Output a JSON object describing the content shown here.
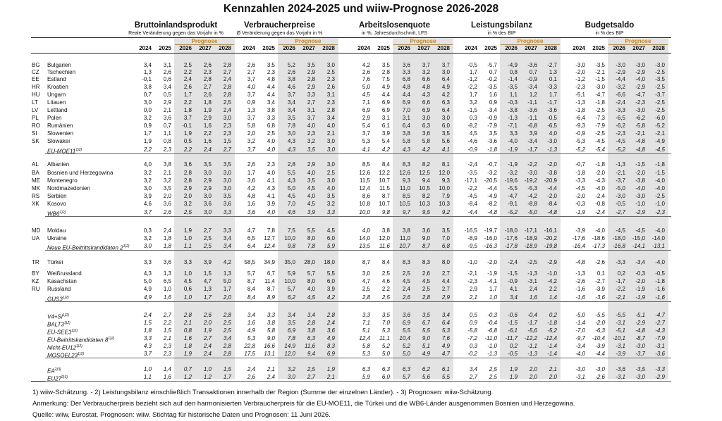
{
  "title": "Kennzahlen 2024-2025 und wiiw-Prognose 2026-2028",
  "groups": [
    {
      "name": "Bruttoinlandsprodukt",
      "sub": "Reale Veränderung gegen das Vorjahr in %"
    },
    {
      "name": "Verbraucherpreise",
      "sub": "Ø Veränderung gegen das Vorjahr in %"
    },
    {
      "name": "Arbeitslosenquote",
      "sub": "in %, Jahresdurchschnitt, LFS"
    },
    {
      "name": "Leistungsbilanz",
      "sub": "in % des BIP"
    },
    {
      "name": "Budgetsaldo",
      "sub": "in % des BIP"
    }
  ],
  "prognose_label": "Prognose",
  "years": [
    "2024",
    "2025",
    "2026",
    "2027",
    "2028"
  ],
  "rows": [
    {
      "code": "BG",
      "name": "Bulgarien",
      "vals": [
        "3,4",
        "3,1",
        "2,5",
        "2,6",
        "2,8",
        "2,6",
        "3,5",
        "5,2",
        "3,5",
        "3,0",
        "4,2",
        "3,5",
        "3,6",
        "3,7",
        "3,7",
        "-0,5",
        "-5,7",
        "-4,9",
        "-3,6",
        "-2,7",
        "-3,0",
        "-3,5",
        "-3,0",
        "-3,0",
        "-3,0"
      ]
    },
    {
      "code": "CZ",
      "name": "Tschechien",
      "vals": [
        "1,3",
        "2,6",
        "2,2",
        "2,3",
        "2,7",
        "2,7",
        "2,3",
        "2,6",
        "2,9",
        "2,5",
        "2,6",
        "2,8",
        "3,3",
        "3,2",
        "3,0",
        "1,7",
        "0,7",
        "0,8",
        "0,7",
        "1,3",
        "-2,0",
        "-2,1",
        "-2,9",
        "-2,9",
        "-2,5"
      ]
    },
    {
      "code": "EE",
      "name": "Estland",
      "vals": [
        "-0,1",
        "0,6",
        "2,4",
        "2,8",
        "2,4",
        "3,7",
        "4,8",
        "3,8",
        "2,8",
        "2,3",
        "7,6",
        "7,5",
        "6,8",
        "6,6",
        "6,4",
        "-1,2",
        "-0,2",
        "-1,4",
        "-0,9",
        "0,1",
        "-1,2",
        "-1,5",
        "-4,4",
        "-4,0",
        "-3,5"
      ]
    },
    {
      "code": "HR",
      "name": "Kroatien",
      "vals": [
        "3,8",
        "3,4",
        "2,6",
        "2,7",
        "2,8",
        "4,0",
        "4,4",
        "4,6",
        "2,9",
        "2,6",
        "5,0",
        "4,9",
        "4,8",
        "4,8",
        "4,9",
        "-2,2",
        "-3,5",
        "-3,5",
        "-3,4",
        "-3,3",
        "-2,3",
        "-3,0",
        "-3,2",
        "-2,9",
        "-2,5"
      ]
    },
    {
      "code": "HU",
      "name": "Ungarn",
      "vals": [
        "0,7",
        "0,5",
        "1,7",
        "2,6",
        "2,8",
        "3,7",
        "4,4",
        "3,7",
        "3,3",
        "3,1",
        "4,5",
        "4,4",
        "4,4",
        "4,3",
        "4,2",
        "1,7",
        "1,6",
        "1,1",
        "1,2",
        "1,7",
        "-5,1",
        "-4,7",
        "-6,6",
        "-4,7",
        "-3,7"
      ]
    },
    {
      "code": "LT",
      "name": "Litauen",
      "vals": [
        "3,0",
        "2,9",
        "2,2",
        "1,8",
        "2,5",
        "0,9",
        "3,4",
        "3,4",
        "2,7",
        "2,3",
        "7,1",
        "6,9",
        "6,9",
        "6,6",
        "6,3",
        "3,2",
        "0,9",
        "-0,3",
        "-1,1",
        "-1,7",
        "-1,3",
        "-1,8",
        "-2,4",
        "-2,3",
        "-2,5"
      ]
    },
    {
      "code": "LV",
      "name": "Lettland",
      "vals": [
        "0,0",
        "2,1",
        "1,8",
        "1,9",
        "2,4",
        "1,3",
        "3,8",
        "3,4",
        "3,1",
        "2,8",
        "6,9",
        "6,9",
        "7,0",
        "6,9",
        "6,4",
        "-1,5",
        "-3,4",
        "-3,8",
        "-3,6",
        "-3,6",
        "-1,8",
        "-2,5",
        "-3,3",
        "-3,0",
        "-2,5"
      ]
    },
    {
      "code": "PL",
      "name": "Polen",
      "vals": [
        "3,2",
        "3,6",
        "3,7",
        "2,9",
        "3,0",
        "3,7",
        "3,3",
        "3,5",
        "3,7",
        "3,4",
        "2,9",
        "3,1",
        "3,1",
        "3,0",
        "3,0",
        "0,3",
        "-0,9",
        "-1,3",
        "-1,1",
        "-0,5",
        "-6,4",
        "-7,3",
        "-6,5",
        "-6,2",
        "-6,0"
      ]
    },
    {
      "code": "RO",
      "name": "Rumänien",
      "vals": [
        "0,9",
        "0,7",
        "-0,1",
        "1,6",
        "2,3",
        "5,8",
        "6,8",
        "7,8",
        "4,0",
        "4,0",
        "5,4",
        "6,1",
        "6,4",
        "6,3",
        "6,0",
        "-8,2",
        "-7,9",
        "-7,1",
        "-6,8",
        "-6,5",
        "-9,3",
        "-7,9",
        "-6,2",
        "-5,8",
        "-5,2"
      ]
    },
    {
      "code": "SI",
      "name": "Slowenien",
      "vals": [
        "1,7",
        "1,1",
        "1,9",
        "2,2",
        "2,3",
        "2,0",
        "2,5",
        "3,0",
        "2,3",
        "2,1",
        "3,7",
        "3,9",
        "3,8",
        "3,6",
        "3,5",
        "4,5",
        "3,5",
        "3,3",
        "3,9",
        "4,0",
        "-0,9",
        "-2,5",
        "-2,3",
        "-2,1",
        "-2,1"
      ]
    },
    {
      "code": "SK",
      "name": "Slowakei",
      "vals": [
        "1,9",
        "0,8",
        "0,5",
        "1,6",
        "1,5",
        "3,2",
        "4,0",
        "4,3",
        "3,2",
        "3,0",
        "5,3",
        "5,4",
        "5,8",
        "5,8",
        "5,6",
        "-4,6",
        "-3,6",
        "-4,0",
        "-3,4",
        "-3,0",
        "-5,3",
        "-4,5",
        "-4,5",
        "-4,8",
        "-4,9"
      ]
    },
    {
      "code": "",
      "name": "EU-MOE11",
      "sup": "1)2)",
      "agg": true,
      "ul": true,
      "vals": [
        "2,2",
        "2,3",
        "2,2",
        "2,4",
        "2,7",
        "3,7",
        "4,0",
        "4,3",
        "3,5",
        "3,0",
        "4,1",
        "4,2",
        "4,3",
        "4,2",
        "4,1",
        "-0,9",
        "-1,8",
        "-1,9",
        "-1,7",
        "-1,3",
        "-5,2",
        "-5,4",
        "-5,2",
        "-4,8",
        "-4,5"
      ]
    },
    {
      "code": "AL",
      "name": "Albanien",
      "vals": [
        "4,0",
        "3,8",
        "3,6",
        "3,5",
        "3,5",
        "2,6",
        "2,3",
        "2,8",
        "2,9",
        "3,0",
        "8,5",
        "8,4",
        "8,3",
        "8,2",
        "8,1",
        "-2,4",
        "-0,7",
        "-1,9",
        "-2,2",
        "-2,0",
        "-0,7",
        "-1,8",
        "-1,3",
        "-1,5",
        "-1,8"
      ]
    },
    {
      "code": "BA",
      "name": "Bosnien und Herzegowina",
      "vals": [
        "3,2",
        "2,1",
        "2,8",
        "3,0",
        "3,0",
        "1,7",
        "4,0",
        "5,5",
        "4,0",
        "2,5",
        "12,6",
        "12,2",
        "12,6",
        "12,5",
        "12,0",
        "-3,5",
        "-3,2",
        "-3,2",
        "-3,0",
        "-3,8",
        "-1,8",
        "-2,0",
        "-2,1",
        "-2,0",
        "-1,5"
      ]
    },
    {
      "code": "ME",
      "name": "Montenegro",
      "vals": [
        "3,2",
        "3,2",
        "2,8",
        "2,9",
        "3,0",
        "3,6",
        "4,1",
        "4,3",
        "3,5",
        "3,0",
        "11,5",
        "10,7",
        "9,3",
        "9,4",
        "9,3",
        "-17,1",
        "-20,5",
        "-19,6",
        "-19,2",
        "-20,9",
        "-3,3",
        "-4,3",
        "-3,7",
        "-3,8",
        "-4,0"
      ]
    },
    {
      "code": "MK",
      "name": "Nordmazedonien",
      "vals": [
        "3,0",
        "3,5",
        "2,9",
        "2,9",
        "3,0",
        "4,2",
        "4,3",
        "5,0",
        "4,5",
        "4,0",
        "12,4",
        "11,5",
        "11,0",
        "10,5",
        "10,0",
        "-2,2",
        "-4,4",
        "-5,5",
        "-5,3",
        "-4,4",
        "-4,5",
        "-4,0",
        "-5,0",
        "-4,0",
        "-4,0"
      ]
    },
    {
      "code": "RS",
      "name": "Serbien",
      "vals": [
        "3,9",
        "2,0",
        "2,0",
        "3,0",
        "3,5",
        "4,8",
        "4,1",
        "4,5",
        "4,0",
        "3,5",
        "8,6",
        "8,7",
        "8,5",
        "8,2",
        "7,9",
        "-4,5",
        "-4,9",
        "-4,7",
        "-4,2",
        "-2,0",
        "-2,0",
        "-2,4",
        "-3,0",
        "-3,0",
        "-2,5"
      ]
    },
    {
      "code": "XK",
      "name": "Kosovo",
      "vals": [
        "4,6",
        "3,6",
        "3,2",
        "3,6",
        "3,6",
        "1,6",
        "3,9",
        "7,0",
        "4,5",
        "3,2",
        "10,8",
        "10,7",
        "10,5",
        "10,3",
        "10,3",
        "-8,4",
        "-8,2",
        "-9,1",
        "-8,8",
        "-8,4",
        "-0,3",
        "-0,8",
        "-0,5",
        "-1,0",
        "-1,0"
      ]
    },
    {
      "code": "",
      "name": "WB6",
      "sup": "1)2)",
      "agg": true,
      "ul": true,
      "vals": [
        "3,7",
        "2,6",
        "2,5",
        "3,0",
        "3,3",
        "3,6",
        "4,0",
        "4,6",
        "3,9",
        "3,3",
        "10,0",
        "9,8",
        "9,7",
        "9,5",
        "9,2",
        "-4,4",
        "-4,8",
        "-5,2",
        "-5,0",
        "-4,8",
        "-1,9",
        "-2,4",
        "-2,7",
        "-2,9",
        "-2,3"
      ]
    },
    {
      "code": "MD",
      "name": "Moldau",
      "vals": [
        "0,3",
        "2,4",
        "1,9",
        "2,7",
        "3,3",
        "4,7",
        "7,8",
        "7,5",
        "5,5",
        "4,5",
        "4,0",
        "3,8",
        "3,8",
        "3,6",
        "3,5",
        "-16,5",
        "-19,7",
        "-18,0",
        "-17,1",
        "-16,1",
        "-3,9",
        "-4,0",
        "-4,5",
        "-4,5",
        "-4,0"
      ]
    },
    {
      "code": "UA",
      "name": "Ukraine",
      "vals": [
        "3,2",
        "1,8",
        "1,0",
        "2,5",
        "3,4",
        "6,5",
        "12,7",
        "10,0",
        "8,0",
        "6,0",
        "14,0",
        "12,0",
        "11,0",
        "9,0",
        "7,0",
        "-8,9",
        "-16,0",
        "-17,6",
        "-18,9",
        "-20,2",
        "-17,6",
        "-18,6",
        "-18,0",
        "-15,0",
        "-14,0"
      ]
    },
    {
      "code": "",
      "name": "Neue EU-Beitrittskandidaten 2",
      "sup": "1)2)",
      "agg": true,
      "ul": true,
      "vals": [
        "3,0",
        "1,8",
        "1,1",
        "2,5",
        "3,4",
        "6,4",
        "12,4",
        "9,8",
        "7,8",
        "5,9",
        "13,5",
        "11,6",
        "10,7",
        "8,7",
        "6,8",
        "-9,5",
        "-16,3",
        "-17,8",
        "-18,9",
        "-19,8",
        "-16,4",
        "-17,3",
        "-16,8",
        "-14,1",
        "-13,1"
      ]
    },
    {
      "code": "TR",
      "name": "Türkei",
      "vals": [
        "3,3",
        "3,6",
        "3,3",
        "3,9",
        "4,2",
        "58,5",
        "34,9",
        "35,0",
        "28,0",
        "18,0",
        "8,7",
        "8,4",
        "8,3",
        "8,3",
        "8,0",
        "-1,0",
        "-2,0",
        "-2,4",
        "-2,5",
        "-2,9",
        "-4,8",
        "-2,6",
        "-3,3",
        "-3,4",
        "-4,0"
      ]
    },
    {
      "code": "BY",
      "name": "Weißrussland",
      "vals": [
        "4,3",
        "1,3",
        "1,0",
        "1,5",
        "1,3",
        "5,7",
        "6,7",
        "5,9",
        "5,7",
        "5,5",
        "3,0",
        "2,5",
        "2,5",
        "2,6",
        "2,7",
        "-2,1",
        "-1,9",
        "-1,5",
        "-1,3",
        "-1,0",
        "-1,3",
        "0,1",
        "0,2",
        "-0,3",
        "-0,5"
      ]
    },
    {
      "code": "KZ",
      "name": "Kasachstan",
      "vals": [
        "5,0",
        "6,5",
        "4,5",
        "4,7",
        "5,0",
        "8,7",
        "11,4",
        "10,0",
        "8,0",
        "6,0",
        "4,7",
        "4,6",
        "4,5",
        "4,5",
        "4,4",
        "-2,3",
        "-4,1",
        "-0,9",
        "-3,1",
        "-4,2",
        "-2,6",
        "-2,7",
        "-1,7",
        "-2,0",
        "-1,8"
      ]
    },
    {
      "code": "RU",
      "name": "Russland",
      "vals": [
        "4,9",
        "1,0",
        "0,6",
        "1,3",
        "1,7",
        "8,4",
        "8,7",
        "5,7",
        "4,0",
        "3,9",
        "2,5",
        "2,2",
        "2,4",
        "2,5",
        "2,7",
        "2,9",
        "1,7",
        "4,1",
        "2,4",
        "2,2",
        "-1,6",
        "-3,9",
        "-2,2",
        "-1,9",
        "-1,6"
      ]
    },
    {
      "code": "",
      "name": "GUS3",
      "sup": "1)2)",
      "agg": true,
      "ul": true,
      "vals": [
        "4,9",
        "1,6",
        "1,0",
        "1,7",
        "2,0",
        "8,4",
        "8,9",
        "6,2",
        "4,5",
        "4,2",
        "2,8",
        "2,5",
        "2,6",
        "2,8",
        "2,9",
        "2,1",
        "1,0",
        "3,4",
        "1,6",
        "1,4",
        "-1,6",
        "-3,6",
        "-2,1",
        "-1,9",
        "-1,6"
      ]
    },
    {
      "code": "",
      "name": "V4+SI",
      "sup": "1)2)",
      "agg": true,
      "vals": [
        "2,4",
        "2,7",
        "2,8",
        "2,6",
        "2,8",
        "3,4",
        "3,3",
        "3,4",
        "3,4",
        "2,8",
        "3,3",
        "3,5",
        "3,6",
        "3,5",
        "3,4",
        "0,5",
        "-0,3",
        "-0,6",
        "-0,4",
        "0,2",
        "-5,0",
        "-5,5",
        "-5,5",
        "-5,1",
        "-4,7"
      ]
    },
    {
      "code": "",
      "name": "BALT3",
      "sup": "1)2)",
      "agg": true,
      "vals": [
        "1,5",
        "2,2",
        "2,1",
        "2,0",
        "2,5",
        "1,6",
        "3,8",
        "3,5",
        "2,8",
        "2,4",
        "7,1",
        "7,0",
        "6,9",
        "6,7",
        "6,4",
        "0,9",
        "-0,4",
        "-1,5",
        "-1,7",
        "-1,8",
        "-1,4",
        "-2,0",
        "-3,1",
        "-2,9",
        "-2,7"
      ]
    },
    {
      "code": "",
      "name": "EU-SEE3",
      "sup": "1)2)",
      "agg": true,
      "vals": [
        "1,8",
        "1,5",
        "0,8",
        "1,9",
        "2,5",
        "4,9",
        "5,8",
        "6,9",
        "3,8",
        "3,6",
        "5,1",
        "5,3",
        "5,5",
        "5,5",
        "5,3",
        "-5,8",
        "-6,8",
        "-6,1",
        "-5,6",
        "-5,2",
        "-7,0",
        "-6,3",
        "-5,1",
        "-4,8",
        "-4,3"
      ]
    },
    {
      "code": "",
      "name": "EU-Beitrittskandidaten 8",
      "sup": "1)2)",
      "agg": true,
      "vals": [
        "3,3",
        "2,1",
        "1,6",
        "2,7",
        "3,4",
        "5,3",
        "9,0",
        "7,8",
        "6,3",
        "4,9",
        "12,4",
        "11,1",
        "10,4",
        "9,0",
        "7,6",
        "-7,2",
        "-11,0",
        "-11,7",
        "-12,2",
        "-12,4",
        "-9,7",
        "-10,4",
        "-10,1",
        "-8,7",
        "-7,9"
      ]
    },
    {
      "code": "",
      "name": "Nicht-EU12",
      "sup": "1)2)",
      "agg": true,
      "vals": [
        "4,3",
        "2,3",
        "1,8",
        "2,4",
        "2,8",
        "22,8",
        "16,6",
        "14,9",
        "11,6",
        "8,3",
        "5,8",
        "5,2",
        "5,2",
        "5,1",
        "4,9",
        "0,3",
        "-1,0",
        "0,2",
        "-1,1",
        "-1,4",
        "-3,4",
        "-3,9",
        "-3,1",
        "-3,0",
        "-3,1"
      ]
    },
    {
      "code": "",
      "name": "MOSOEL23",
      "sup": "1)2)",
      "agg": true,
      "ul": true,
      "vals": [
        "3,7",
        "2,3",
        "1,9",
        "2,4",
        "2,8",
        "17,5",
        "13,1",
        "12,0",
        "9,4",
        "6,9",
        "5,3",
        "5,0",
        "5,0",
        "4,9",
        "4,7",
        "-0,2",
        "-1,3",
        "-0,5",
        "-1,3",
        "-1,4",
        "-4,0",
        "-4,4",
        "-3,9",
        "-3,7",
        "-3,6"
      ]
    },
    {
      "code": "",
      "name": "EA",
      "sup": "2)3)",
      "agg": true,
      "vals": [
        "1,0",
        "1,4",
        "0,7",
        "1,0",
        "1,5",
        "2,4",
        "2,1",
        "3,2",
        "2,5",
        "1,9",
        "6,3",
        "6,3",
        "6,3",
        "6,2",
        "6,1",
        "3,4",
        "2,5",
        "1,9",
        "2,0",
        "2,1",
        "-3,0",
        "-3,0",
        "-3,6",
        "-3,5",
        "-3,3"
      ]
    },
    {
      "code": "",
      "name": "EU27",
      "sup": "2)3)",
      "agg": true,
      "ul": true,
      "vals": [
        "1,1",
        "1,6",
        "1,2",
        "1,2",
        "1,7",
        "2,6",
        "2,4",
        "3,0",
        "2,7",
        "2,1",
        "5,9",
        "6,0",
        "5,7",
        "5,6",
        "5,5",
        "2,7",
        "2,5",
        "1,9",
        "2,0",
        "2,0",
        "-3,1",
        "-2,6",
        "-3,1",
        "-3,0",
        "-2,9"
      ]
    }
  ],
  "footnotes": [
    "1) wiiw-Schätzung. - 2) Leistungsbilanz einschließlich Transaktionen innerhalb der Region (Summe der einzelnen Länder). - 3) Prognosen: wiiw-Schätzung.",
    "Anmerkung: Der Verbraucherpreis bezieht sich auf den harmonisierten Verbraucherpreis für die EU-MOE11, die Türkei und die WB6-Länder ausgenommen Bosnien und Herzegowina.",
    "Quelle: wiiw, Eurostat. Prognosen: wiiw. Stichtag für historische Daten und Prognosen: 11 Juni 2026."
  ]
}
